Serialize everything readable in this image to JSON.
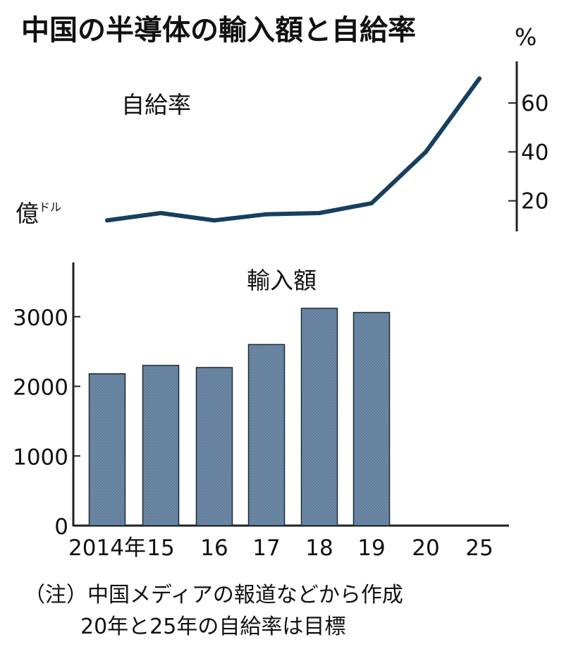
{
  "title": "中国の半導体の輸入額と自給率",
  "percent_unit": "%",
  "yen_unit_main": "億",
  "yen_unit_sup": "ドル",
  "note_line1": "（注）中国メディアの報道などから作成",
  "note_line2": "20年と25年の自給率は目標",
  "colors": {
    "line": "#16405f",
    "bar": "#5d7a98",
    "bar_edge": "#1d2a36",
    "axis": "#222222"
  },
  "chart_data": [
    {
      "type": "line",
      "label": "自給率",
      "x": [
        "2014",
        "15",
        "16",
        "17",
        "18",
        "19",
        "20",
        "25"
      ],
      "values": [
        12,
        15,
        12,
        14.5,
        15,
        19,
        40,
        70
      ],
      "yticks": [
        20,
        40,
        60
      ],
      "ylim": [
        7.5,
        77
      ],
      "unit": "%"
    },
    {
      "type": "bar",
      "label": "輸入額",
      "categories": [
        "2014年",
        "15",
        "16",
        "17",
        "18",
        "19",
        "20",
        "25"
      ],
      "values": [
        2180,
        2300,
        2270,
        2600,
        3120,
        3060,
        null,
        null
      ],
      "yticks": [
        0,
        1000,
        2000,
        3000
      ],
      "ylim": [
        0,
        3900
      ],
      "unit": "億ドル"
    }
  ]
}
